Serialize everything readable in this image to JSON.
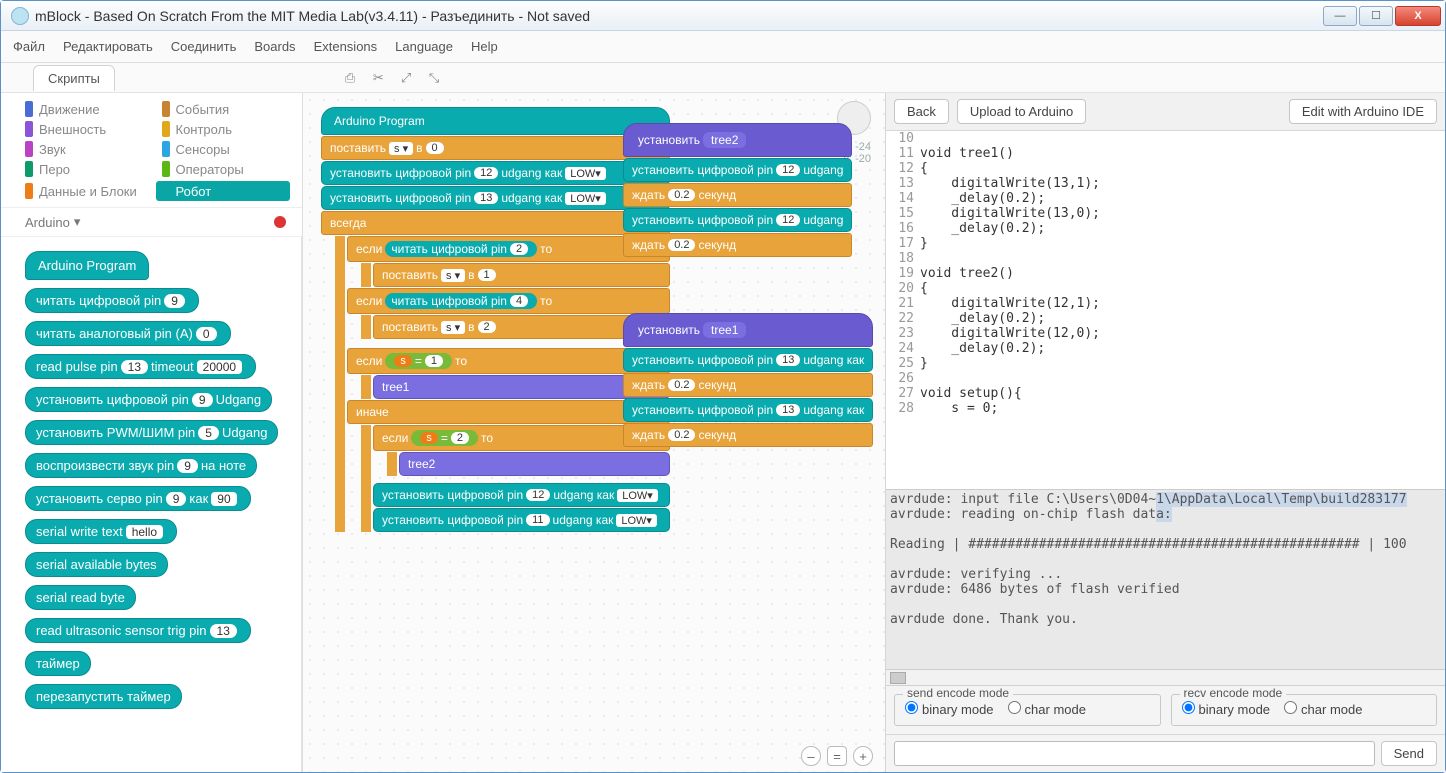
{
  "window": {
    "title": "mBlock - Based On Scratch From the MIT Media Lab(v3.4.11) - Разъединить - Not saved"
  },
  "menubar": [
    "Файл",
    "Редактировать",
    "Соединить",
    "Boards",
    "Extensions",
    "Language",
    "Help"
  ],
  "tab": "Скрипты",
  "categories": [
    {
      "label": "Движение",
      "color": "#4a6cd4"
    },
    {
      "label": "События",
      "color": "#c88330"
    },
    {
      "label": "Внешность",
      "color": "#8a55d7"
    },
    {
      "label": "Контроль",
      "color": "#e1a91a"
    },
    {
      "label": "Звук",
      "color": "#bb42c3"
    },
    {
      "label": "Сенсоры",
      "color": "#2ca5e2"
    },
    {
      "label": "Перо",
      "color": "#0e9a6c"
    },
    {
      "label": "Операторы",
      "color": "#5cb712"
    },
    {
      "label": "Данные и Блоки",
      "color": "#ee7d16"
    },
    {
      "label": "Робот",
      "color": "#0aa6a6",
      "active": true
    }
  ],
  "sprite": {
    "label": "Arduino",
    "caret": "▾"
  },
  "palette": [
    {
      "type": "hat",
      "text": "Arduino Program"
    },
    {
      "text": "читать цифровой pin",
      "pills": [
        "9"
      ]
    },
    {
      "text": "читать аналоговый pin (A)",
      "pills": [
        "0"
      ]
    },
    {
      "text": "read pulse pin",
      "pills": [
        "13"
      ],
      "text2": "timeout",
      "pillsq": [
        "20000"
      ]
    },
    {
      "text": "установить цифровой pin",
      "pills": [
        "9"
      ],
      "text2": "Udgang"
    },
    {
      "text": "установить PWM/ШИМ pin",
      "pills": [
        "5"
      ],
      "text2": "Udgang"
    },
    {
      "text": "воспроизвести звук pin",
      "pills": [
        "9"
      ],
      "text2": "на ноте"
    },
    {
      "text": "установить серво pin",
      "pills": [
        "9"
      ],
      "text2": "как",
      "pillsq": [
        "90"
      ]
    },
    {
      "text": "serial write text",
      "pillsq": [
        "hello"
      ]
    },
    {
      "text": "serial available bytes"
    },
    {
      "text": "serial read byte"
    },
    {
      "text": "read ultrasonic sensor trig pin",
      "pills": [
        "13"
      ]
    },
    {
      "text": "таймер"
    },
    {
      "text": "перезапустить таймер"
    }
  ],
  "coords": {
    "x": "x: -24",
    "y": "y: -20"
  },
  "stack1": {
    "hat": "Arduino Program",
    "set_var": {
      "pre": "поставить",
      "var": "s ▾",
      "mid": "в",
      "val": "0"
    },
    "dp12": {
      "pre": "установить цифровой pin",
      "pin": "12",
      "mid": "udgang как",
      "val": "LOW▾"
    },
    "dp13": {
      "pre": "установить цифровой pin",
      "pin": "13",
      "mid": "udgang как",
      "val": "LOW▾"
    },
    "forever": "всегда",
    "if1": {
      "pre": "если",
      "inner_pre": "читать цифровой pin",
      "pin": "2",
      "post": "то"
    },
    "set1": {
      "pre": "поставить",
      "var": "s ▾",
      "mid": "в",
      "val": "1"
    },
    "if2": {
      "pre": "если",
      "inner_pre": "читать цифровой pin",
      "pin": "4",
      "post": "то"
    },
    "set2": {
      "pre": "поставить",
      "var": "s ▾",
      "mid": "в",
      "val": "2"
    },
    "if3": {
      "pre": "если",
      "op_l": "s",
      "op": "=",
      "op_r": "1",
      "post": "то"
    },
    "call1": "tree1",
    "else": "иначе",
    "if4": {
      "pre": "если",
      "op_l": "s",
      "op": "=",
      "op_r": "2",
      "post": "то"
    },
    "call2": "tree2",
    "dp12b": {
      "pre": "установить цифровой pin",
      "pin": "12",
      "mid": "udgang как",
      "val": "LOW▾"
    },
    "dp11": {
      "pre": "установить цифровой pin",
      "pin": "11",
      "mid": "udgang как",
      "val": "LOW▾"
    }
  },
  "stack2": {
    "hat": {
      "pre": "установить",
      "name": "tree2"
    },
    "l1": {
      "pre": "установить цифровой pin",
      "pin": "12",
      "post": "udgang"
    },
    "w1": {
      "pre": "ждать",
      "val": "0.2",
      "post": "секунд"
    },
    "l2": {
      "pre": "установить цифровой pin",
      "pin": "12",
      "post": "udgang"
    },
    "w2": {
      "pre": "ждать",
      "val": "0.2",
      "post": "секунд"
    }
  },
  "stack3": {
    "hat": {
      "pre": "установить",
      "name": "tree1"
    },
    "l1": {
      "pre": "установить цифровой pin",
      "pin": "13",
      "post": "udgang как"
    },
    "w1": {
      "pre": "ждать",
      "val": "0.2",
      "post": "секунд"
    },
    "l2": {
      "pre": "установить цифровой pin",
      "pin": "13",
      "post": "udgang как"
    },
    "w2": {
      "pre": "ждать",
      "val": "0.2",
      "post": "секунд"
    }
  },
  "right": {
    "back": "Back",
    "upload": "Upload to Arduino",
    "edit": "Edit with Arduino IDE",
    "send": "Send",
    "send_legend": "send encode mode",
    "recv_legend": "recv encode mode",
    "binary": "binary mode",
    "char": "char mode"
  },
  "code": [
    {
      "n": 10,
      "t": ""
    },
    {
      "n": 11,
      "t": "void tree1()"
    },
    {
      "n": 12,
      "t": "{"
    },
    {
      "n": 13,
      "t": "    digitalWrite(13,1);"
    },
    {
      "n": 14,
      "t": "    _delay(0.2);"
    },
    {
      "n": 15,
      "t": "    digitalWrite(13,0);"
    },
    {
      "n": 16,
      "t": "    _delay(0.2);"
    },
    {
      "n": 17,
      "t": "}"
    },
    {
      "n": 18,
      "t": ""
    },
    {
      "n": 19,
      "t": "void tree2()"
    },
    {
      "n": 20,
      "t": "{"
    },
    {
      "n": 21,
      "t": "    digitalWrite(12,1);"
    },
    {
      "n": 22,
      "t": "    _delay(0.2);"
    },
    {
      "n": 23,
      "t": "    digitalWrite(12,0);"
    },
    {
      "n": 24,
      "t": "    _delay(0.2);"
    },
    {
      "n": 25,
      "t": "}"
    },
    {
      "n": 26,
      "t": ""
    },
    {
      "n": 27,
      "t": "void setup(){"
    },
    {
      "n": 28,
      "t": "    s = 0;"
    }
  ],
  "console": [
    {
      "t": "avrdude: input file C:\\Users\\0D04~",
      "sel": true,
      "t2": "1\\AppData\\Local\\Temp\\build283177"
    },
    {
      "t": "avrdude: reading on-chip flash dat",
      "sel": true,
      "t2": "a:"
    },
    {
      "t": ""
    },
    {
      "t": "Reading | ################################################## | 100"
    },
    {
      "t": ""
    },
    {
      "t": "avrdude: verifying ..."
    },
    {
      "t": "avrdude: 6486 bytes of flash verified"
    },
    {
      "t": ""
    },
    {
      "t": "avrdude done.  Thank you."
    },
    {
      "t": ""
    }
  ],
  "colors": {
    "teal": "#0aabaf",
    "teal_border": "#0a8b8f",
    "orange": "#e8a33b",
    "orange_border": "#c9862b",
    "purple": "#6a5bd0",
    "green": "#7aba3a"
  }
}
